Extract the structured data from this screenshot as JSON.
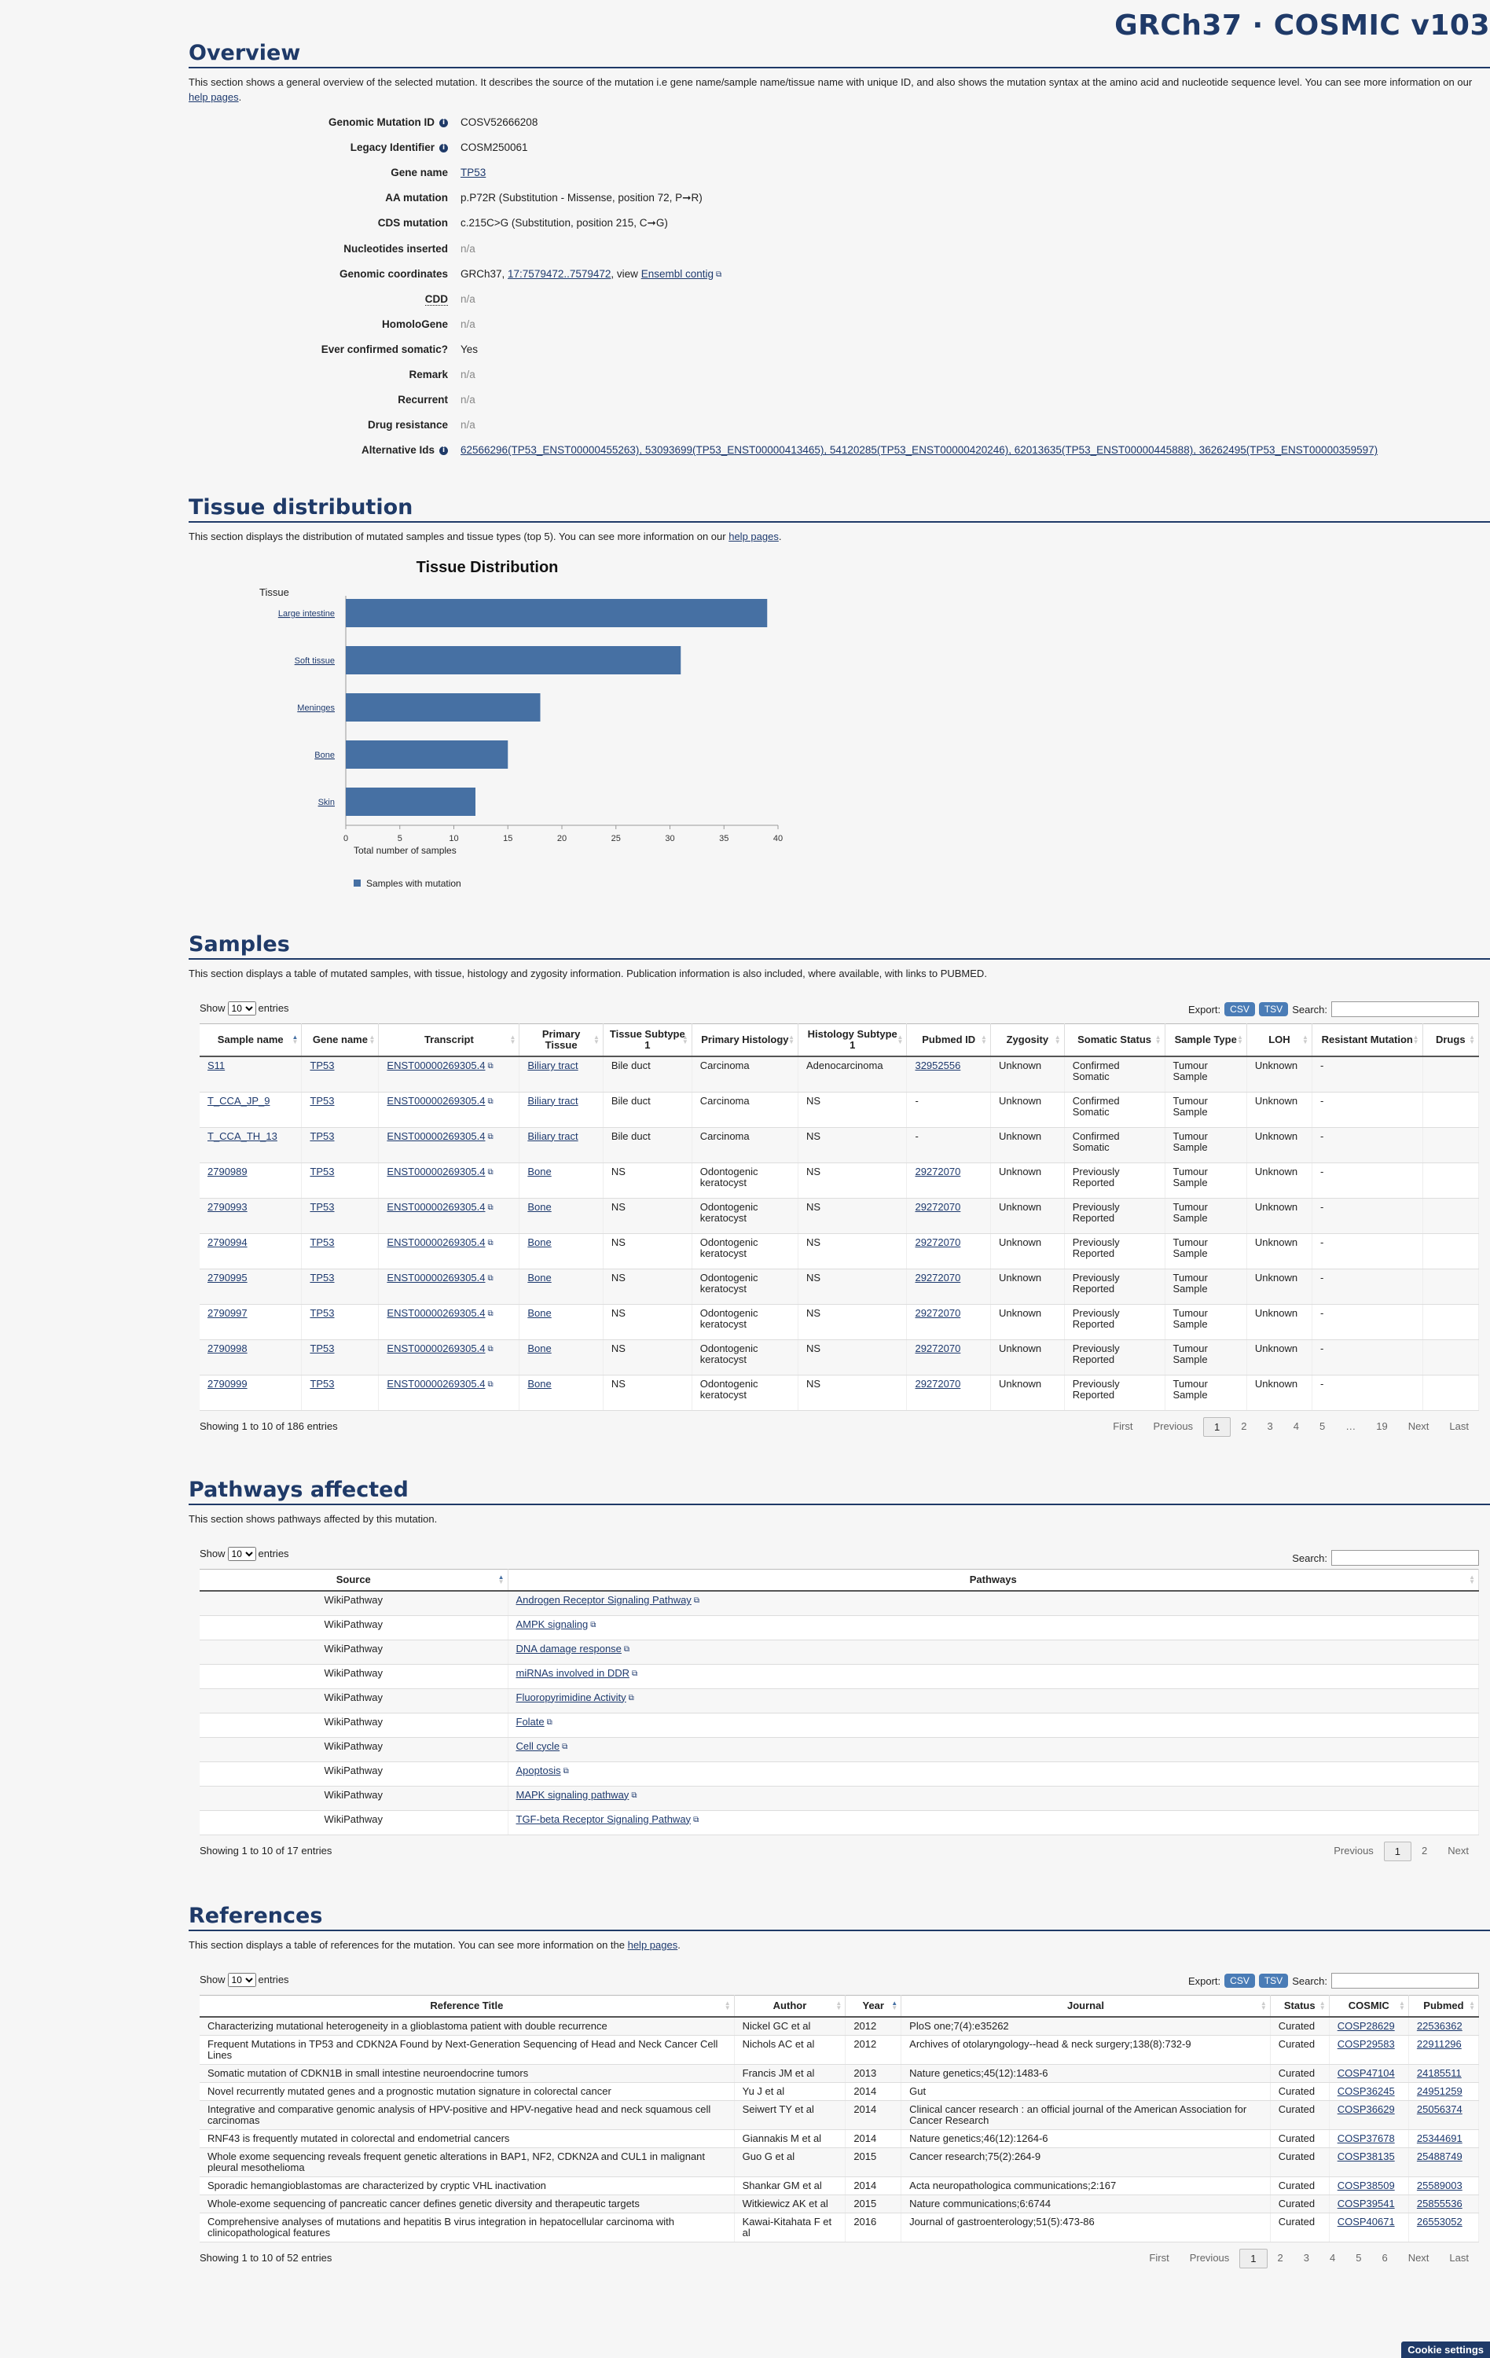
{
  "brand": "GRCh37 · COSMIC v103",
  "overview": {
    "title": "Overview",
    "desc_pre": "This section shows a general overview of the selected mutation. It describes the source of the mutation i.e gene name/sample name/tissue name with unique ID, and also shows the mutation syntax at the amino acid and nucleotide sequence level. You can see more information on our ",
    "help_link": "help pages",
    "desc_post": ".",
    "rows": [
      {
        "label": "Genomic Mutation ID",
        "info": true,
        "value": "COSV52666208"
      },
      {
        "label": "Legacy Identifier",
        "info": true,
        "value": "COSM250061"
      },
      {
        "label": "Gene name",
        "link": "TP53"
      },
      {
        "label": "AA mutation",
        "value": "p.P72R (Substitution - Missense, position 72, P➞R)"
      },
      {
        "label": "CDS mutation",
        "value": "c.215C>G (Substitution, position 215, C➞G)"
      },
      {
        "label": "Nucleotides inserted",
        "na": "n/a"
      },
      {
        "label": "Genomic coordinates",
        "coords": {
          "pre": "GRCh37, ",
          "link": "17:7579472..7579472",
          "mid": ", view ",
          "link2": "Ensembl contig"
        }
      },
      {
        "label": "CDD",
        "na": "n/a",
        "abbr": true
      },
      {
        "label": "HomoloGene",
        "na": "n/a"
      },
      {
        "label": "Ever confirmed somatic?",
        "value": "Yes"
      },
      {
        "label": "Remark",
        "na": "n/a"
      },
      {
        "label": "Recurrent",
        "na": "n/a"
      },
      {
        "label": "Drug resistance",
        "na": "n/a"
      },
      {
        "label": "Alternative Ids",
        "info": true,
        "link": "62566296(TP53_ENST00000455263), 53093699(TP53_ENST00000413465), 54120285(TP53_ENST00000420246), 62013635(TP53_ENST00000445888), 36262495(TP53_ENST00000359597)"
      }
    ]
  },
  "tissue": {
    "title": "Tissue distribution",
    "desc_pre": "This section displays the distribution of mutated samples and tissue types (top 5). You can see more information on our ",
    "help_link": "help pages",
    "desc_post": "."
  },
  "chart_data": {
    "type": "bar",
    "orientation": "horizontal",
    "title": "Tissue Distribution",
    "ylabel": "Tissue",
    "xlabel": "Total number of samples",
    "categories": [
      "Large intestine",
      "Soft tissue",
      "Meninges",
      "Bone",
      "Skin"
    ],
    "series": [
      {
        "name": "Samples with mutation",
        "values": [
          39,
          31,
          18,
          15,
          12
        ]
      }
    ],
    "xlim": [
      0,
      40
    ],
    "xticks": [
      0,
      5,
      10,
      15,
      20,
      25,
      30,
      35,
      40
    ],
    "grid": false,
    "legend": "bottom-left",
    "bar_color": "#4670a3"
  },
  "samples": {
    "title": "Samples",
    "desc": "This section displays a table of mutated samples, with tissue, histology and zygosity information. Publication information is also included, where available, with links to PUBMED.",
    "show_pre": "Show",
    "show_val": "10",
    "show_post": "entries",
    "export": "Export:",
    "csv": "CSV",
    "tsv": "TSV",
    "search": "Search:",
    "headers": [
      "Sample name",
      "Gene name",
      "Transcript",
      "Primary Tissue",
      "Tissue Subtype 1",
      "Primary Histology",
      "Histology Subtype 1",
      "Pubmed ID",
      "Zygosity",
      "Somatic Status",
      "Sample Type",
      "LOH",
      "Resistant Mutation",
      "Drugs"
    ],
    "rows": [
      [
        "S11",
        "TP53",
        "ENST00000269305.4",
        "Biliary tract",
        "Bile duct",
        "Carcinoma",
        "Adenocarcinoma",
        "32952556",
        "Unknown",
        "Confirmed Somatic",
        "Tumour Sample",
        "Unknown",
        "-",
        ""
      ],
      [
        "T_CCA_JP_9",
        "TP53",
        "ENST00000269305.4",
        "Biliary tract",
        "Bile duct",
        "Carcinoma",
        "NS",
        "-",
        "Unknown",
        "Confirmed Somatic",
        "Tumour Sample",
        "Unknown",
        "-",
        ""
      ],
      [
        "T_CCA_TH_13",
        "TP53",
        "ENST00000269305.4",
        "Biliary tract",
        "Bile duct",
        "Carcinoma",
        "NS",
        "-",
        "Unknown",
        "Confirmed Somatic",
        "Tumour Sample",
        "Unknown",
        "-",
        ""
      ],
      [
        "2790989",
        "TP53",
        "ENST00000269305.4",
        "Bone",
        "NS",
        "Odontogenic keratocyst",
        "NS",
        "29272070",
        "Unknown",
        "Previously Reported",
        "Tumour Sample",
        "Unknown",
        "-",
        ""
      ],
      [
        "2790993",
        "TP53",
        "ENST00000269305.4",
        "Bone",
        "NS",
        "Odontogenic keratocyst",
        "NS",
        "29272070",
        "Unknown",
        "Previously Reported",
        "Tumour Sample",
        "Unknown",
        "-",
        ""
      ],
      [
        "2790994",
        "TP53",
        "ENST00000269305.4",
        "Bone",
        "NS",
        "Odontogenic keratocyst",
        "NS",
        "29272070",
        "Unknown",
        "Previously Reported",
        "Tumour Sample",
        "Unknown",
        "-",
        ""
      ],
      [
        "2790995",
        "TP53",
        "ENST00000269305.4",
        "Bone",
        "NS",
        "Odontogenic keratocyst",
        "NS",
        "29272070",
        "Unknown",
        "Previously Reported",
        "Tumour Sample",
        "Unknown",
        "-",
        ""
      ],
      [
        "2790997",
        "TP53",
        "ENST00000269305.4",
        "Bone",
        "NS",
        "Odontogenic keratocyst",
        "NS",
        "29272070",
        "Unknown",
        "Previously Reported",
        "Tumour Sample",
        "Unknown",
        "-",
        ""
      ],
      [
        "2790998",
        "TP53",
        "ENST00000269305.4",
        "Bone",
        "NS",
        "Odontogenic keratocyst",
        "NS",
        "29272070",
        "Unknown",
        "Previously Reported",
        "Tumour Sample",
        "Unknown",
        "-",
        ""
      ],
      [
        "2790999",
        "TP53",
        "ENST00000269305.4",
        "Bone",
        "NS",
        "Odontogenic keratocyst",
        "NS",
        "29272070",
        "Unknown",
        "Previously Reported",
        "Tumour Sample",
        "Unknown",
        "-",
        ""
      ]
    ],
    "info": "Showing 1 to 10 of 186 entries",
    "pager": [
      "First",
      "Previous",
      "1",
      "2",
      "3",
      "4",
      "5",
      "…",
      "19",
      "Next",
      "Last"
    ]
  },
  "pathways": {
    "title": "Pathways affected",
    "desc": "This section shows pathways affected by this mutation.",
    "show_pre": "Show",
    "show_val": "10",
    "show_post": "entries",
    "search": "Search:",
    "headers": [
      "Source",
      "Pathways"
    ],
    "rows": [
      [
        "WikiPathway",
        "Androgen Receptor Signaling Pathway"
      ],
      [
        "WikiPathway",
        "AMPK signaling"
      ],
      [
        "WikiPathway",
        "DNA damage response"
      ],
      [
        "WikiPathway",
        "miRNAs involved in DDR"
      ],
      [
        "WikiPathway",
        "Fluoropyrimidine Activity"
      ],
      [
        "WikiPathway",
        "Folate"
      ],
      [
        "WikiPathway",
        "Cell cycle"
      ],
      [
        "WikiPathway",
        "Apoptosis"
      ],
      [
        "WikiPathway",
        "MAPK signaling pathway"
      ],
      [
        "WikiPathway",
        "TGF-beta Receptor Signaling Pathway"
      ]
    ],
    "info": "Showing 1 to 10 of 17 entries",
    "pager": [
      "Previous",
      "1",
      "2",
      "Next"
    ]
  },
  "references": {
    "title": "References",
    "desc_pre": "This section displays a table of references for the mutation. You can see more information on the ",
    "help_link": "help pages",
    "desc_post": ".",
    "show_pre": "Show",
    "show_val": "10",
    "show_post": "entries",
    "export": "Export:",
    "csv": "CSV",
    "tsv": "TSV",
    "search": "Search:",
    "headers": [
      "Reference Title",
      "Author",
      "Year",
      "Journal",
      "Status",
      "COSMIC",
      "Pubmed"
    ],
    "rows": [
      [
        "Characterizing mutational heterogeneity in a glioblastoma patient with double recurrence",
        "Nickel GC et al",
        "2012",
        "PloS one;7(4):e35262",
        "Curated",
        "COSP28629",
        "22536362"
      ],
      [
        "Frequent Mutations in TP53 and CDKN2A Found by Next-Generation Sequencing of Head and Neck Cancer Cell Lines",
        "Nichols AC et al",
        "2012",
        "Archives of otolaryngology--head & neck surgery;138(8):732-9",
        "Curated",
        "COSP29583",
        "22911296"
      ],
      [
        "Somatic mutation of CDKN1B in small intestine neuroendocrine tumors",
        "Francis JM et al",
        "2013",
        "Nature genetics;45(12):1483-6",
        "Curated",
        "COSP47104",
        "24185511"
      ],
      [
        "Novel recurrently mutated genes and a prognostic mutation signature in colorectal cancer",
        "Yu J et al",
        "2014",
        "Gut",
        "Curated",
        "COSP36245",
        "24951259"
      ],
      [
        "Integrative and comparative genomic analysis of HPV-positive and HPV-negative head and neck squamous cell carcinomas",
        "Seiwert TY et al",
        "2014",
        "Clinical cancer research : an official journal of the American Association for Cancer Research",
        "Curated",
        "COSP36629",
        "25056374"
      ],
      [
        "RNF43 is frequently mutated in colorectal and endometrial cancers",
        "Giannakis M et al",
        "2014",
        "Nature genetics;46(12):1264-6",
        "Curated",
        "COSP37678",
        "25344691"
      ],
      [
        "Whole exome sequencing reveals frequent genetic alterations in BAP1, NF2, CDKN2A and CUL1 in malignant pleural mesothelioma",
        "Guo G et al",
        "2015",
        "Cancer research;75(2):264-9",
        "Curated",
        "COSP38135",
        "25488749"
      ],
      [
        "Sporadic hemangioblastomas are characterized by cryptic VHL inactivation",
        "Shankar GM et al",
        "2014",
        "Acta neuropathologica communications;2:167",
        "Curated",
        "COSP38509",
        "25589003"
      ],
      [
        "Whole-exome sequencing of pancreatic cancer defines genetic diversity and therapeutic targets",
        "Witkiewicz AK et al",
        "2015",
        "Nature communications;6:6744",
        "Curated",
        "COSP39541",
        "25855536"
      ],
      [
        "Comprehensive analyses of mutations and hepatitis B virus integration in hepatocellular carcinoma with clinicopathological features",
        "Kawai-Kitahata F et al",
        "2016",
        "Journal of gastroenterology;51(5):473-86",
        "Curated",
        "COSP40671",
        "26553052"
      ]
    ],
    "info": "Showing 1 to 10 of 52 entries",
    "pager": [
      "First",
      "Previous",
      "1",
      "2",
      "3",
      "4",
      "5",
      "6",
      "Next",
      "Last"
    ]
  },
  "cookie": "Cookie settings"
}
